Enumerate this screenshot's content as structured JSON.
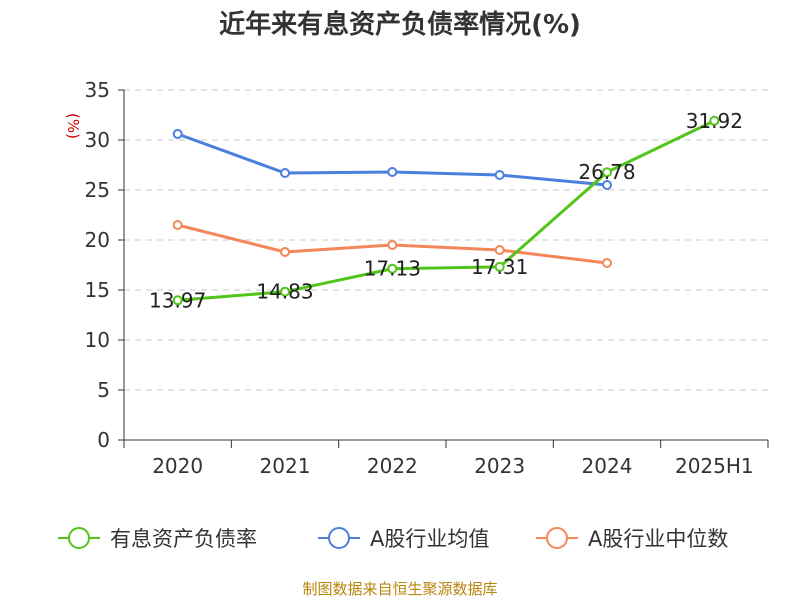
{
  "chart_data": {
    "type": "line",
    "title": "近年来有息资产负债率情况(%)",
    "ylabel": "(%)",
    "xlabel": "",
    "categories": [
      "2020",
      "2021",
      "2022",
      "2023",
      "2024",
      "2025H1"
    ],
    "ylim": [
      0,
      35
    ],
    "yticks": [
      0,
      5,
      10,
      15,
      20,
      25,
      30,
      35
    ],
    "grid": true,
    "legend_position": "bottom",
    "series": [
      {
        "name": "有息资产负债率",
        "color": "#52c41a",
        "values": [
          13.97,
          14.83,
          17.13,
          17.31,
          26.78,
          31.92
        ],
        "labels": [
          "13.97",
          "14.83",
          "17.13",
          "17.31",
          "26.78",
          "31.92"
        ]
      },
      {
        "name": "A股行业均值",
        "color": "#4a7fdb",
        "values": [
          30.6,
          26.7,
          26.8,
          26.5,
          25.5,
          null
        ]
      },
      {
        "name": "A股行业中位数",
        "color": "#f4865a",
        "values": [
          21.5,
          18.8,
          19.5,
          19.0,
          17.7,
          null
        ]
      }
    ]
  },
  "source": "制图数据来自恒生聚源数据库"
}
